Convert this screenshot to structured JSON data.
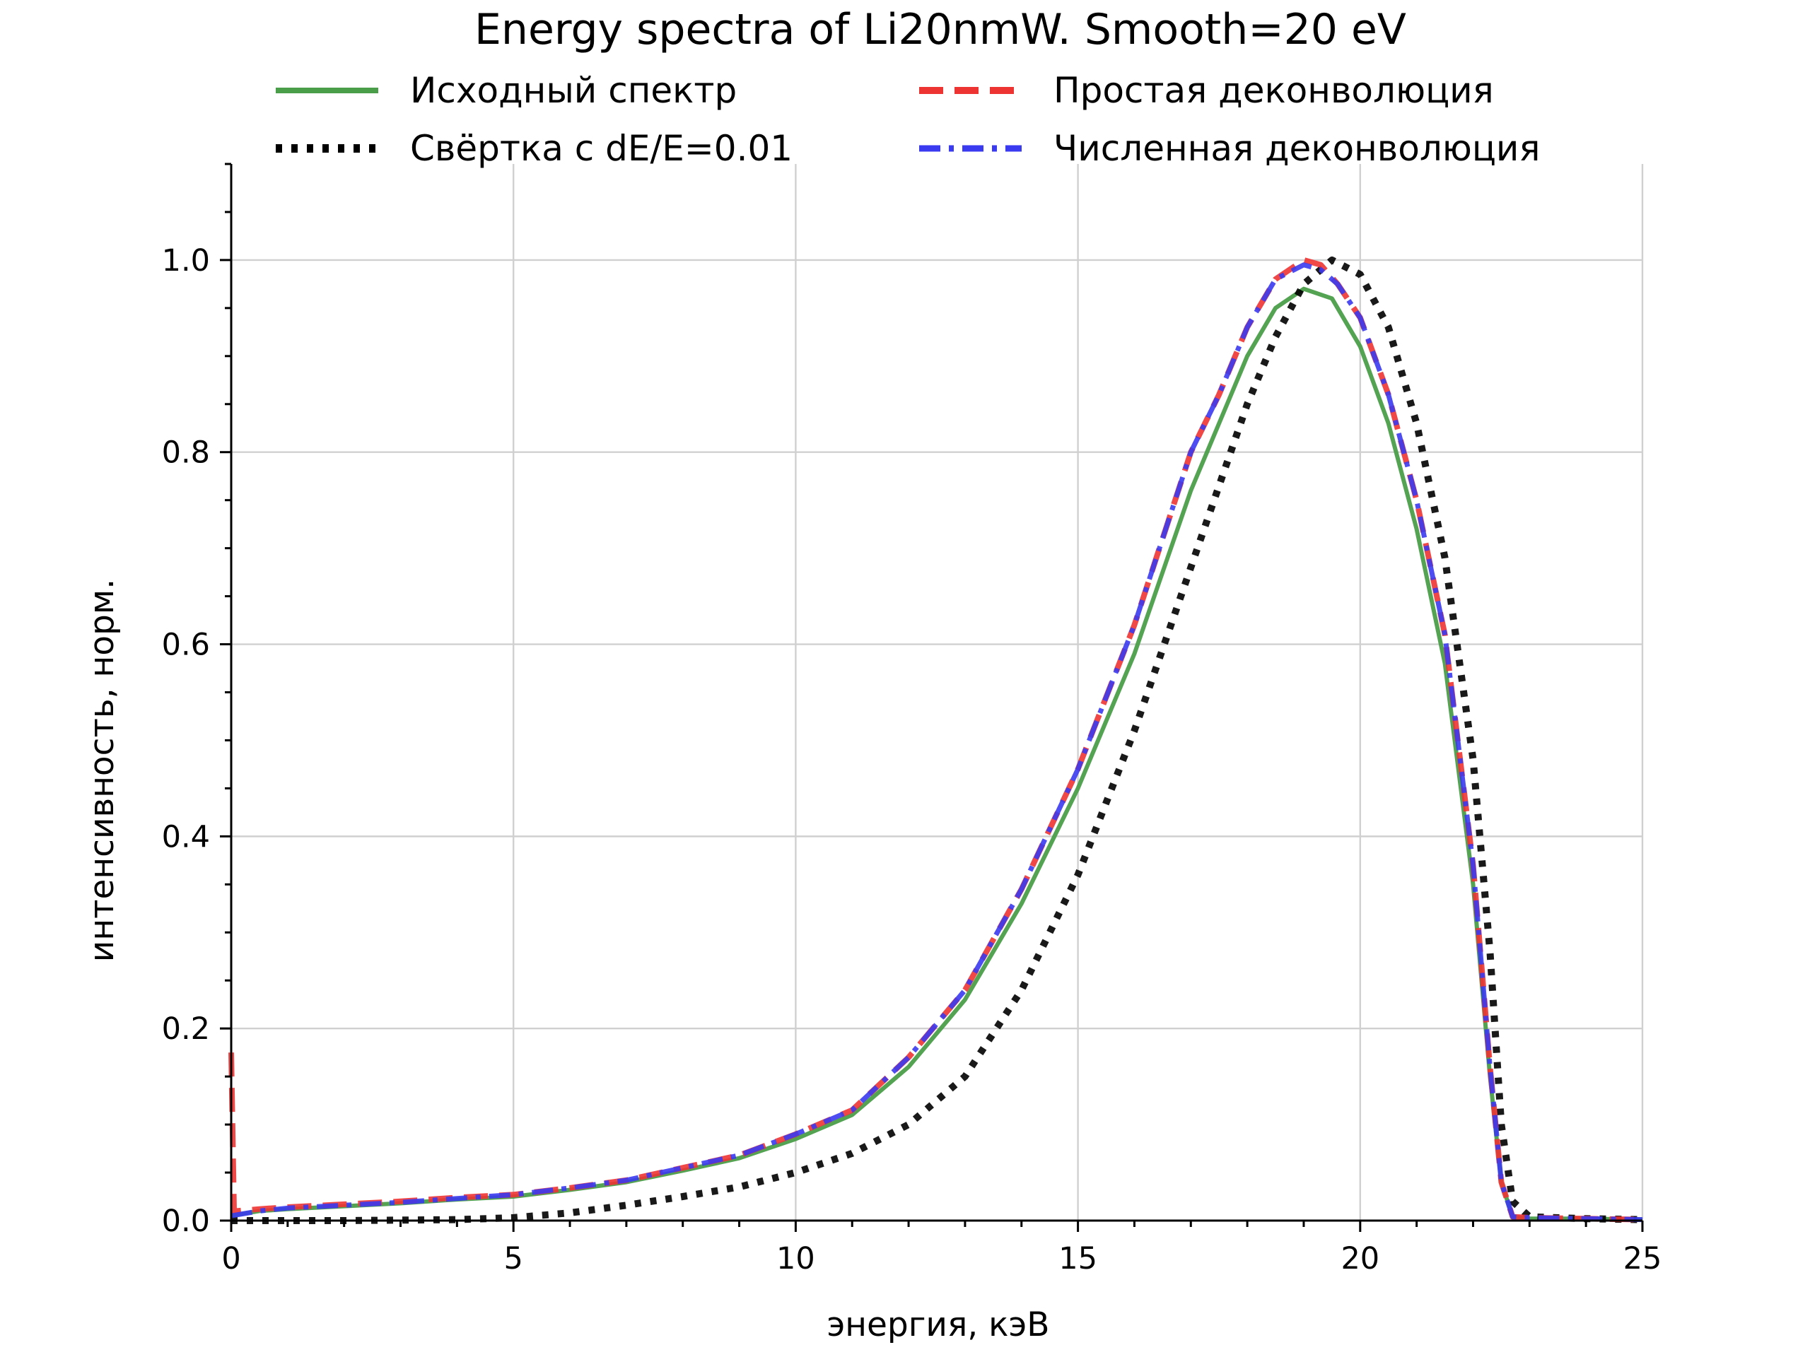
{
  "chart_data": {
    "type": "line",
    "title": "Energy spectra of Li20nmW. Smooth=20 eV",
    "xlabel": "энергия, кэВ",
    "ylabel": "интенсивность, норм.",
    "xlim": [
      0,
      25
    ],
    "ylim": [
      0,
      1.1
    ],
    "xticks": [
      0,
      5,
      10,
      15,
      20,
      25
    ],
    "xtick_labels": [
      "0",
      "5",
      "10",
      "15",
      "20",
      "25"
    ],
    "yticks": [
      0.0,
      0.2,
      0.4,
      0.6,
      0.8,
      1.0
    ],
    "ytick_labels": [
      "0.0",
      "0.2",
      "0.4",
      "0.6",
      "0.8",
      "1.0"
    ],
    "grid": true,
    "legend_position": "top",
    "series": [
      {
        "name": "Исходный спектр",
        "color": "#4a9e4a",
        "style": "solid",
        "x": [
          0,
          0.5,
          1,
          2,
          3,
          4,
          5,
          6,
          7,
          8,
          9,
          10,
          11,
          12,
          13,
          14,
          15,
          16,
          17,
          17.5,
          18,
          18.5,
          19,
          19.5,
          20,
          20.5,
          21,
          21.5,
          22,
          22.3,
          22.5,
          22.7,
          23,
          24,
          25
        ],
        "y": [
          0.005,
          0.01,
          0.012,
          0.015,
          0.018,
          0.022,
          0.025,
          0.032,
          0.04,
          0.052,
          0.065,
          0.085,
          0.11,
          0.16,
          0.23,
          0.33,
          0.45,
          0.59,
          0.76,
          0.83,
          0.9,
          0.95,
          0.97,
          0.96,
          0.91,
          0.83,
          0.72,
          0.58,
          0.35,
          0.15,
          0.04,
          0.004,
          0.002,
          0.002,
          0.001
        ]
      },
      {
        "name": "Свёртка с dE/E=0.01",
        "color": "#000000",
        "style": "dotted",
        "x": [
          0,
          2,
          4,
          5,
          6,
          7,
          8,
          9,
          10,
          11,
          12,
          13,
          14,
          15,
          16,
          17,
          18,
          18.5,
          19,
          19.5,
          20,
          20.5,
          21,
          21.5,
          22,
          22.3,
          22.5,
          22.7,
          23,
          24,
          25
        ],
        "y": [
          0.0,
          0.0,
          0.001,
          0.003,
          0.008,
          0.016,
          0.025,
          0.035,
          0.05,
          0.07,
          0.1,
          0.15,
          0.24,
          0.36,
          0.51,
          0.68,
          0.85,
          0.92,
          0.975,
          1.0,
          0.985,
          0.93,
          0.83,
          0.69,
          0.48,
          0.28,
          0.1,
          0.02,
          0.004,
          0.002,
          0.001
        ]
      },
      {
        "name": "Простая деконволюция",
        "color": "#ee3333",
        "style": "dashed",
        "x": [
          0,
          0.05,
          0.1,
          0.5,
          1,
          2,
          3,
          4,
          5,
          6,
          7,
          8,
          9,
          10,
          11,
          12,
          13,
          14,
          15,
          16,
          17,
          17.5,
          18,
          18.5,
          19,
          19.3,
          19.6,
          20,
          20.5,
          21,
          21.5,
          22,
          22.3,
          22.5,
          22.7,
          23,
          24,
          25
        ],
        "y": [
          0.175,
          0.01,
          0.01,
          0.012,
          0.014,
          0.017,
          0.02,
          0.024,
          0.027,
          0.034,
          0.042,
          0.055,
          0.068,
          0.09,
          0.115,
          0.17,
          0.24,
          0.345,
          0.47,
          0.62,
          0.8,
          0.86,
          0.93,
          0.98,
          1.0,
          0.995,
          0.975,
          0.94,
          0.86,
          0.75,
          0.61,
          0.37,
          0.16,
          0.04,
          0.004,
          0.003,
          0.002,
          0.001
        ]
      },
      {
        "name": "Численная деконволюция",
        "color": "#3a3af0",
        "style": "dashdot",
        "x": [
          0,
          0.5,
          1,
          2,
          3,
          4,
          5,
          6,
          7,
          8,
          9,
          10,
          11,
          12,
          13,
          14,
          15,
          16,
          17,
          17.5,
          18,
          18.5,
          19,
          19.3,
          19.6,
          20,
          20.5,
          21,
          21.5,
          22,
          22.3,
          22.5,
          22.7,
          23,
          24,
          25
        ],
        "y": [
          0.005,
          0.01,
          0.013,
          0.016,
          0.019,
          0.023,
          0.027,
          0.034,
          0.042,
          0.055,
          0.068,
          0.09,
          0.115,
          0.17,
          0.24,
          0.345,
          0.47,
          0.62,
          0.8,
          0.86,
          0.93,
          0.98,
          0.995,
          0.99,
          0.975,
          0.94,
          0.86,
          0.75,
          0.61,
          0.37,
          0.16,
          0.04,
          0.004,
          0.003,
          0.002,
          0.001
        ]
      }
    ]
  }
}
